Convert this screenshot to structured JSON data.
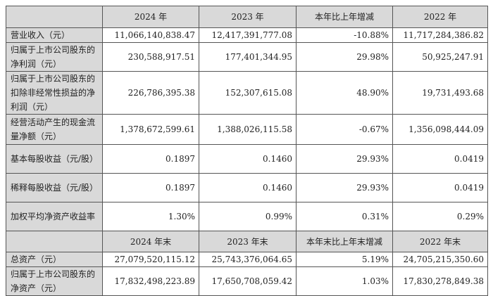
{
  "header": [
    "",
    "2024 年",
    "2023 年",
    "本年比上年增减",
    "2022 年"
  ],
  "rows": [
    {
      "label": "营业收入（元）",
      "values": [
        "11,066,140,838.47",
        "12,417,391,777.08",
        "-10.88%",
        "11,717,284,386.82"
      ]
    },
    {
      "label": "归属于上市公司股东的净利润（元）",
      "values": [
        "230,588,917.51",
        "177,401,344.95",
        "29.98%",
        "50,925,247.91"
      ]
    },
    {
      "label": "归属于上市公司股东的扣除非经常性损益的净利润（元）",
      "values": [
        "226,786,395.38",
        "152,307,615.08",
        "48.90%",
        "19,731,493.68"
      ]
    },
    {
      "label": "经营活动产生的现金流量净额（元）",
      "values": [
        "1,378,672,599.61",
        "1,388,026,115.58",
        "-0.67%",
        "1,356,098,444.09"
      ]
    },
    {
      "label": "基本每股收益（元/股）",
      "values": [
        "0.1897",
        "0.1460",
        "29.93%",
        "0.0419"
      ]
    },
    {
      "label": "稀释每股收益（元/股）",
      "values": [
        "0.1897",
        "0.1460",
        "29.93%",
        "0.0419"
      ]
    },
    {
      "label": "加权平均净资产收益率",
      "values": [
        "1.30%",
        "0.99%",
        "0.31%",
        "0.29%"
      ]
    }
  ],
  "header2": [
    "",
    "2024 年末",
    "2023 年末",
    "本年末比上年末增减",
    "2022 年末"
  ],
  "rows2": [
    {
      "label": "总资产（元）",
      "values": [
        "27,079,520,115.12",
        "25,743,376,064.65",
        "5.19%",
        "24,705,215,350.60"
      ]
    },
    {
      "label": "归属于上市公司股东的净资产（元）",
      "values": [
        "17,832,498,223.89",
        "17,650,708,059.42",
        "1.03%",
        "17,830,278,849.38"
      ]
    }
  ]
}
